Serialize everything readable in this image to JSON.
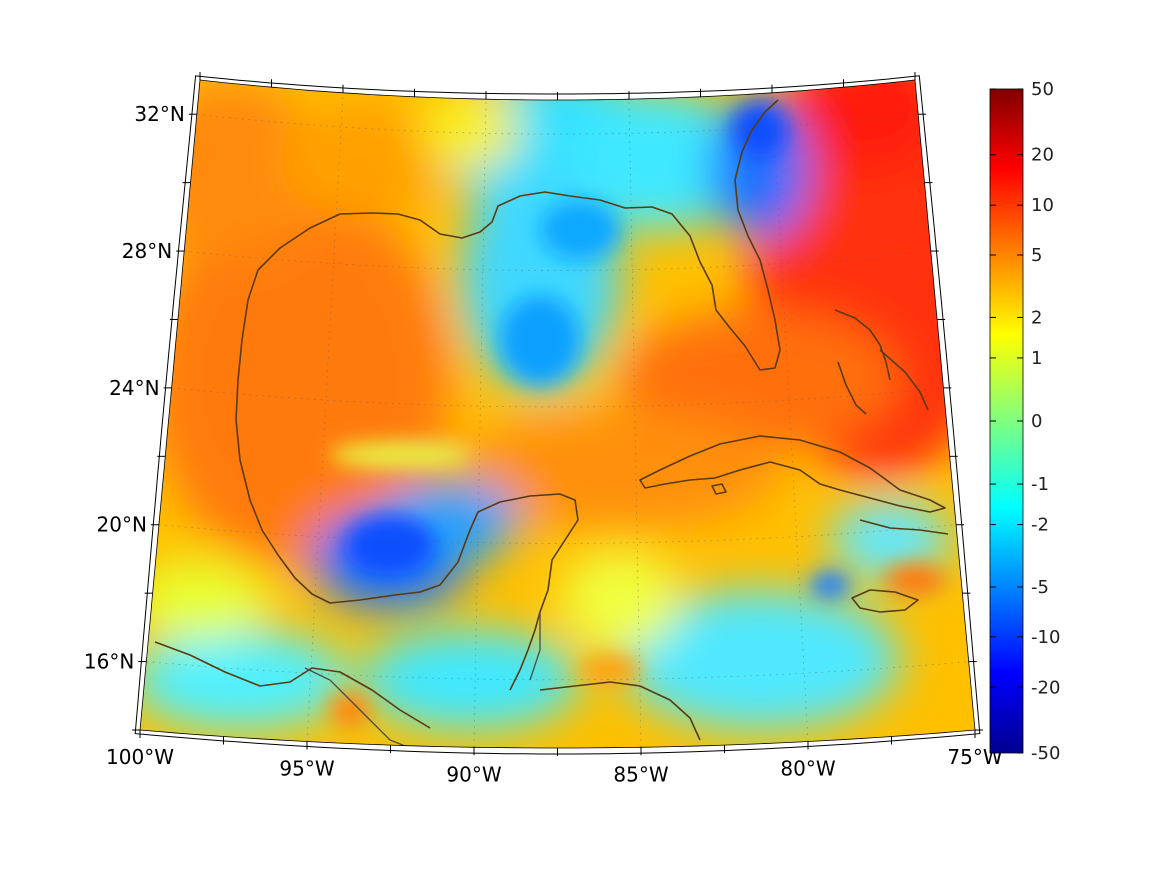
{
  "map": {
    "projection": "conic",
    "extent": {
      "lon_min": -100,
      "lon_max": -75,
      "lat_min": 14,
      "lat_max": 33
    },
    "lon_ticks": [
      {
        "lon": -100,
        "label": "100°W"
      },
      {
        "lon": -95,
        "label": "95°W"
      },
      {
        "lon": -90,
        "label": "90°W"
      },
      {
        "lon": -85,
        "label": "85°W"
      },
      {
        "lon": -80,
        "label": "80°W"
      },
      {
        "lon": -75,
        "label": "75°W"
      }
    ],
    "lat_ticks": [
      {
        "lat": 32,
        "label": "32°N"
      },
      {
        "lat": 28,
        "label": "28°N"
      },
      {
        "lat": 24,
        "label": "24°N"
      },
      {
        "lat": 20,
        "label": "20°N"
      },
      {
        "lat": 16,
        "label": "16°N"
      }
    ],
    "grid": true,
    "coastline_color": "#5a3a12",
    "colormap": "jet"
  },
  "colorbar": {
    "position": "right",
    "ticks": [
      "50",
      "20",
      "10",
      "5",
      "2",
      "1",
      "0",
      "-1",
      "-2",
      "-5",
      "-10",
      "-20",
      "-50"
    ],
    "colors": [
      "#800000",
      "#ff0000",
      "#ffff00",
      "#00ffff",
      "#0000ff",
      "#00008f"
    ]
  }
}
